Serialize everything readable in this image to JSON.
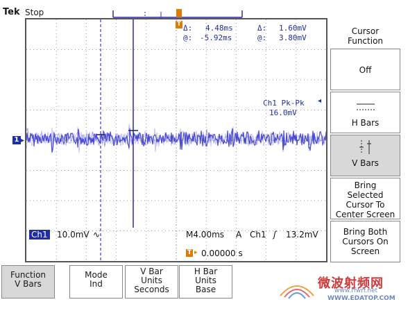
{
  "header": {
    "brand": "Tek",
    "state": "Stop"
  },
  "readouts": {
    "delta_time_label": "Δ:",
    "delta_time": "4.48ms",
    "delta_volt_label": "Δ:",
    "delta_volt": "1.60mV",
    "at_time_label": "@:",
    "at_time": "-5.92ms",
    "at_volt_label": "@:",
    "at_volt": "3.80mV",
    "measurement_name": "Ch1 Pk-Pk",
    "measurement_value": "16.0mV"
  },
  "status_bar": {
    "channel": "Ch1",
    "scale": "10.0mV",
    "coupling_symbol": "∿",
    "timebase": "M4.00ms",
    "acq_mode": "A",
    "trigger_source": "Ch1",
    "trigger_slope_symbol": "ʃ",
    "trigger_level": "13.2mV",
    "trigger_position": "0.00000 s"
  },
  "ch1_marker": "1",
  "trigger_marker": "T",
  "side_menu": {
    "title_line1": "Cursor",
    "title_line2": "Function",
    "items": [
      {
        "label": "Off"
      },
      {
        "label": "H Bars"
      },
      {
        "label": "V Bars"
      },
      {
        "line1": "Bring",
        "line2": "Selected",
        "line3": "Cursor To",
        "line4": "Center Screen"
      },
      {
        "line1": "Bring Both",
        "line2": "Cursors On",
        "line3": "Screen"
      }
    ]
  },
  "bottom_menu": [
    {
      "line1": "Function",
      "line2": "V Bars"
    },
    {
      "line1": "Mode",
      "line2": "Ind"
    },
    {
      "line1": "V Bar",
      "line2": "Units",
      "line3": "Seconds"
    },
    {
      "line1": "H Bar",
      "line2": "Units",
      "line3": "Base"
    }
  ],
  "watermark": {
    "text_cn": "微波射频网",
    "url": "WWW.EDATOP.COM",
    "url2": "www.rfwrf.net"
  },
  "colors": {
    "trace": "#3b3bd0",
    "readout": "#1f2ea0",
    "cursor_active": "#2a2aa0",
    "cursor_inactive": "#3b3bd0",
    "trigger": "#e07a00",
    "grid": "#9a9a9a"
  }
}
